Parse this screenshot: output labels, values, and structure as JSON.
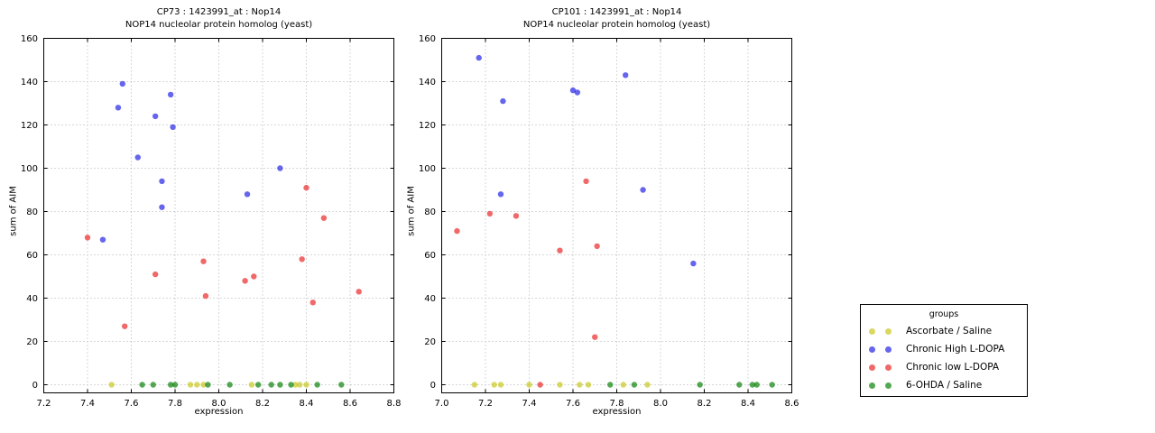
{
  "legend": {
    "title": "groups",
    "marker_alpha": 0.7,
    "items": [
      {
        "label": "Ascorbate / Saline",
        "color": "#c7c71f"
      },
      {
        "label": "Chronic High L-DOPA",
        "color": "#2424e7"
      },
      {
        "label": "Chronic low L-DOPA",
        "color": "#e92a2a"
      },
      {
        "label": "6-OHDA / Saline",
        "color": "#0c830c"
      }
    ]
  },
  "chart_data": [
    {
      "type": "scatter",
      "title": "CP73 : 1423991_at : Nop14",
      "subtitle": "NOP14 nucleolar protein homolog (yeast)",
      "xlabel": "expression",
      "ylabel": "sum of AIM",
      "xlim": [
        7.2,
        8.8
      ],
      "ylim": [
        0,
        160
      ],
      "xticks": [
        7.2,
        7.4,
        7.6,
        7.8,
        8.0,
        8.2,
        8.4,
        8.6,
        8.8
      ],
      "yticks": [
        0,
        20,
        40,
        60,
        80,
        100,
        120,
        140,
        160
      ],
      "grid": true,
      "series": [
        {
          "group": "Ascorbate / Saline",
          "points": [
            [
              7.51,
              0
            ],
            [
              7.87,
              0
            ],
            [
              7.9,
              0
            ],
            [
              7.93,
              0
            ],
            [
              8.15,
              0
            ],
            [
              8.35,
              0
            ],
            [
              8.37,
              0
            ],
            [
              8.4,
              0
            ]
          ]
        },
        {
          "group": "Chronic High L-DOPA",
          "points": [
            [
              7.47,
              67
            ],
            [
              7.54,
              128
            ],
            [
              7.56,
              139
            ],
            [
              7.63,
              105
            ],
            [
              7.71,
              124
            ],
            [
              7.74,
              94
            ],
            [
              7.74,
              82
            ],
            [
              7.78,
              134
            ],
            [
              7.79,
              119
            ],
            [
              8.13,
              88
            ],
            [
              8.28,
              100
            ]
          ]
        },
        {
          "group": "Chronic low L-DOPA",
          "points": [
            [
              7.4,
              68
            ],
            [
              7.57,
              27
            ],
            [
              7.71,
              51
            ],
            [
              7.93,
              57
            ],
            [
              7.94,
              41
            ],
            [
              8.12,
              48
            ],
            [
              8.16,
              50
            ],
            [
              8.38,
              58
            ],
            [
              8.4,
              91
            ],
            [
              8.43,
              38
            ],
            [
              8.48,
              77
            ],
            [
              8.64,
              43
            ]
          ]
        },
        {
          "group": "6-OHDA / Saline",
          "points": [
            [
              7.65,
              0
            ],
            [
              7.7,
              0
            ],
            [
              7.78,
              0
            ],
            [
              7.8,
              0
            ],
            [
              7.95,
              0
            ],
            [
              8.05,
              0
            ],
            [
              8.18,
              0
            ],
            [
              8.24,
              0
            ],
            [
              8.28,
              0
            ],
            [
              8.33,
              0
            ],
            [
              8.45,
              0
            ],
            [
              8.56,
              0
            ]
          ]
        }
      ]
    },
    {
      "type": "scatter",
      "title": "CP101 : 1423991_at : Nop14",
      "subtitle": "NOP14 nucleolar protein homolog (yeast)",
      "xlabel": "expression",
      "ylabel": "sum of AIM",
      "xlim": [
        7.0,
        8.6
      ],
      "ylim": [
        0,
        160
      ],
      "xticks": [
        7.0,
        7.2,
        7.4,
        7.6,
        7.8,
        8.0,
        8.2,
        8.4,
        8.6
      ],
      "yticks": [
        0,
        20,
        40,
        60,
        80,
        100,
        120,
        140,
        160
      ],
      "grid": true,
      "series": [
        {
          "group": "Ascorbate / Saline",
          "points": [
            [
              7.15,
              0
            ],
            [
              7.24,
              0
            ],
            [
              7.27,
              0
            ],
            [
              7.4,
              0
            ],
            [
              7.54,
              0
            ],
            [
              7.63,
              0
            ],
            [
              7.67,
              0
            ],
            [
              7.83,
              0
            ],
            [
              7.94,
              0
            ]
          ]
        },
        {
          "group": "Chronic High L-DOPA",
          "points": [
            [
              7.17,
              151
            ],
            [
              7.27,
              88
            ],
            [
              7.28,
              131
            ],
            [
              7.6,
              136
            ],
            [
              7.62,
              135
            ],
            [
              7.84,
              143
            ],
            [
              7.92,
              90
            ],
            [
              8.15,
              56
            ]
          ]
        },
        {
          "group": "Chronic low L-DOPA",
          "points": [
            [
              7.07,
              71
            ],
            [
              7.22,
              79
            ],
            [
              7.34,
              78
            ],
            [
              7.45,
              0
            ],
            [
              7.54,
              62
            ],
            [
              7.66,
              94
            ],
            [
              7.71,
              64
            ],
            [
              7.7,
              22
            ]
          ]
        },
        {
          "group": "6-OHDA / Saline",
          "points": [
            [
              7.77,
              0
            ],
            [
              7.88,
              0
            ],
            [
              8.18,
              0
            ],
            [
              8.36,
              0
            ],
            [
              8.42,
              0
            ],
            [
              8.44,
              0
            ],
            [
              8.51,
              0
            ]
          ]
        }
      ]
    }
  ]
}
